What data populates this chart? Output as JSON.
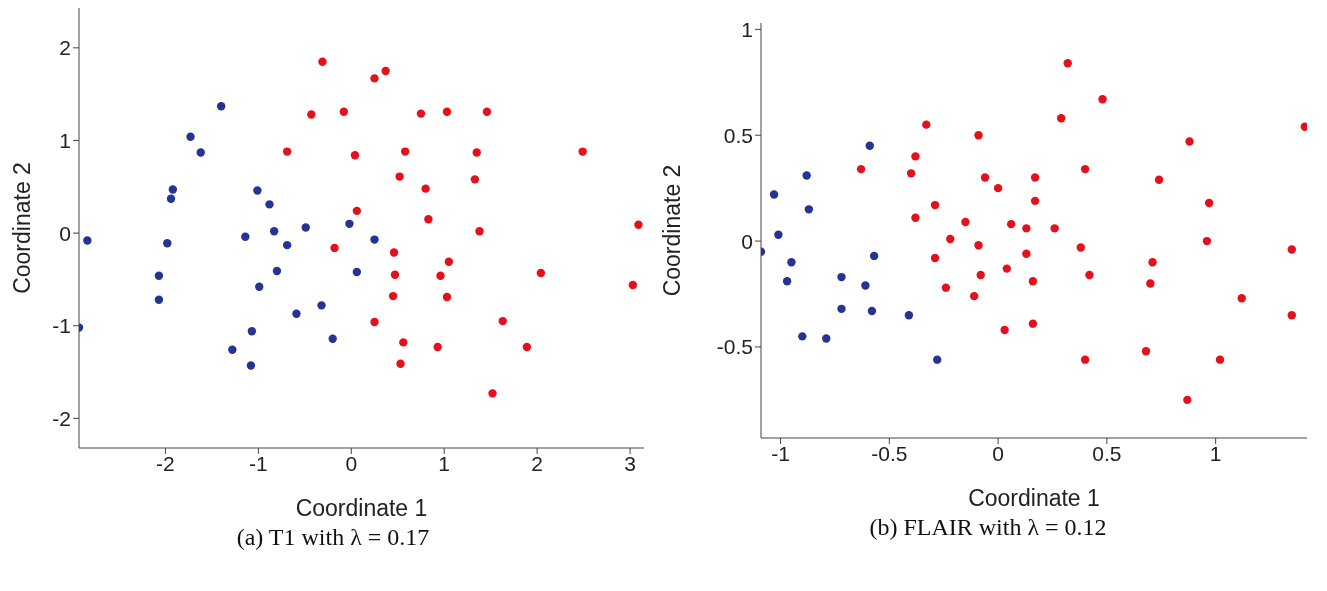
{
  "chart_data": [
    {
      "type": "scatter",
      "xlabel": "Coordinate 1",
      "ylabel": "Coordinate 2",
      "annotations": [
        "(a) T1 with λ = 0.17"
      ],
      "xlim": [
        -2.93,
        3.15
      ],
      "ylim": [
        -2.32,
        2.43
      ],
      "xticks": [
        -2,
        -1,
        0,
        1,
        2,
        3
      ],
      "yticks": [
        -2,
        -1,
        0,
        1,
        2
      ],
      "grid": false,
      "marker": "circle",
      "series": [
        {
          "color": "#253494",
          "x": [
            -2.84,
            -2.93,
            -1.73,
            -1.62,
            -1.4,
            -1.92,
            -1.94,
            -1.98,
            -2.07,
            -2.07,
            -1.01,
            -0.88,
            -1.14,
            -0.83,
            -0.69,
            -0.49,
            -0.8,
            -0.99,
            -0.59,
            -0.32,
            -1.07,
            -1.28,
            -1.08,
            -0.2,
            -0.02,
            0.06,
            0.25
          ],
          "values": [
            -0.08,
            -1.02,
            1.04,
            0.87,
            1.37,
            0.47,
            0.37,
            -0.11,
            -0.46,
            -0.72,
            0.46,
            0.31,
            -0.04,
            0.02,
            -0.13,
            0.06,
            -0.41,
            -0.58,
            -0.87,
            -0.78,
            -1.06,
            -1.26,
            -1.43,
            -1.14,
            0.1,
            -0.42,
            -0.07
          ]
        },
        {
          "color": "#e3111b",
          "x": [
            -0.31,
            -0.43,
            -0.08,
            -0.69,
            0.04,
            0.06,
            -0.18,
            0.37,
            0.25,
            0.75,
            1.03,
            1.46,
            0.58,
            1.35,
            2.49,
            0.52,
            0.8,
            1.33,
            0.83,
            1.38,
            3.09,
            0.46,
            1.05,
            0.47,
            0.96,
            2.04,
            3.03,
            0.45,
            1.03,
            0.25,
            1.63,
            0.56,
            0.93,
            1.89,
            0.53,
            1.52
          ],
          "values": [
            1.85,
            1.28,
            1.31,
            0.88,
            0.84,
            0.24,
            -0.16,
            1.75,
            1.67,
            1.29,
            1.31,
            1.31,
            0.88,
            0.87,
            0.88,
            0.61,
            0.48,
            0.58,
            0.15,
            0.02,
            0.09,
            -0.21,
            -0.31,
            -0.45,
            -0.46,
            -0.43,
            -0.56,
            -0.68,
            -0.69,
            -0.96,
            -0.95,
            -1.18,
            -1.23,
            -1.23,
            -1.41,
            -1.73
          ]
        }
      ]
    },
    {
      "type": "scatter",
      "xlabel": "Coordinate 1",
      "ylabel": "Coordinate 2",
      "annotations": [
        "(b) FLAIR with λ = 0.12"
      ],
      "xlim": [
        -1.09,
        1.42
      ],
      "ylim": [
        -0.93,
        1.03
      ],
      "xticks": [
        -1,
        -0.5,
        0,
        0.5,
        1
      ],
      "yticks": [
        -0.5,
        0,
        0.5,
        1
      ],
      "grid": false,
      "marker": "circle",
      "series": [
        {
          "color": "#253494",
          "x": [
            -1.09,
            -1.03,
            -1.01,
            -0.95,
            -0.97,
            -0.88,
            -0.87,
            -0.9,
            -0.79,
            -0.72,
            -0.72,
            -0.61,
            -0.58,
            -0.59,
            -0.57,
            -0.41,
            -0.28
          ],
          "values": [
            -0.05,
            0.22,
            0.03,
            -0.1,
            -0.19,
            0.31,
            0.15,
            -0.45,
            -0.46,
            -0.17,
            -0.32,
            -0.21,
            -0.33,
            0.45,
            -0.07,
            -0.35,
            -0.56
          ]
        },
        {
          "color": "#e3111b",
          "x": [
            -0.63,
            -0.33,
            -0.38,
            -0.4,
            -0.29,
            -0.38,
            -0.09,
            -0.06,
            0.0,
            -0.15,
            -0.22,
            -0.09,
            -0.29,
            -0.08,
            -0.24,
            -0.11,
            0.06,
            0.04,
            0.03,
            0.13,
            0.13,
            0.16,
            0.32,
            0.48,
            0.29,
            0.88,
            1.41,
            0.4,
            0.17,
            0.74,
            0.17,
            0.97,
            0.26,
            0.38,
            0.96,
            1.35,
            0.71,
            0.42,
            0.16,
            0.7,
            1.12,
            1.35,
            0.68,
            0.4,
            1.02,
            0.87
          ],
          "values": [
            0.34,
            0.55,
            0.4,
            0.32,
            0.17,
            0.11,
            0.5,
            0.3,
            0.25,
            0.09,
            0.01,
            -0.02,
            -0.08,
            -0.16,
            -0.22,
            -0.26,
            0.08,
            -0.13,
            -0.42,
            0.06,
            -0.06,
            -0.39,
            0.84,
            0.67,
            0.58,
            0.47,
            0.54,
            0.34,
            0.3,
            0.29,
            0.19,
            0.18,
            0.06,
            -0.03,
            0.0,
            -0.04,
            -0.1,
            -0.16,
            -0.19,
            -0.2,
            -0.27,
            -0.35,
            -0.52,
            -0.56,
            -0.56,
            -0.75
          ]
        }
      ]
    }
  ]
}
